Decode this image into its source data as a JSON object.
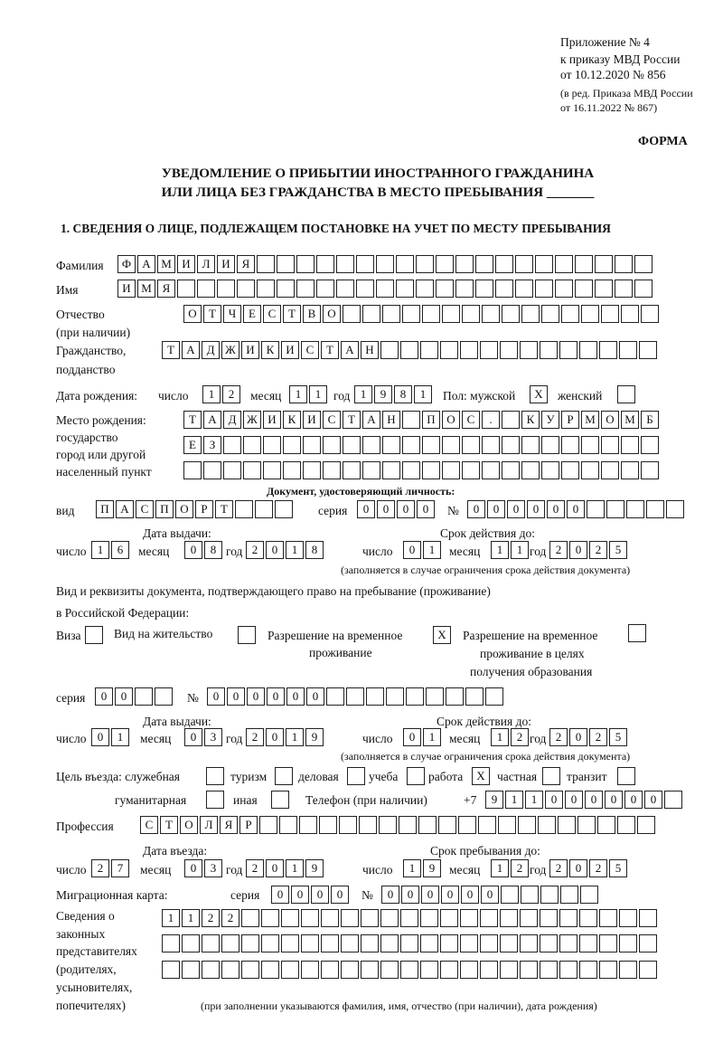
{
  "header": {
    "annex": "Приложение № 4",
    "order1": "к приказу МВД России",
    "order2": "от 10.12.2020 № 856",
    "edit1": "(в ред. Приказа МВД России",
    "edit2": "от 16.11.2022 № 867)",
    "form": "ФОРМА",
    "title1": "УВЕДОМЛЕНИЕ О ПРИБЫТИИ ИНОСТРАННОГО ГРАЖДАНИНА",
    "title2": "ИЛИ ЛИЦА БЕЗ ГРАЖДАНСТВА В МЕСТО ПРЕБЫВАНИЯ _______"
  },
  "section1": "1. СВЕДЕНИЯ О ЛИЦЕ, ПОДЛЕЖАЩЕМ ПОСТАНОВКЕ НА УЧЕТ ПО МЕСТУ ПРЕБЫВАНИЯ",
  "labels": {
    "surname": "Фамилия",
    "name": "Имя",
    "patronymic": "Отчество",
    "patronymic2": "(при наличии)",
    "citizenship": "Гражданство,",
    "citizenship2": "подданство",
    "birthdate": "Дата рождения:",
    "day": "число",
    "month": "месяц",
    "year": "год",
    "sex": "Пол: мужской",
    "female": "женский",
    "birthplace1": "Место рождения:",
    "birthplace2": "государство",
    "birthplace3": "город или другой",
    "birthplace4": "населенный пункт",
    "iddoc": "Документ, удостоверяющий личность:",
    "kind": "вид",
    "series": "серия",
    "number": "№",
    "issued": "Дата выдачи:",
    "valid": "Срок действия до:",
    "validnote": "(заполняется в случае ограничения срока действия документа)",
    "rightdoc1": "Вид и реквизиты документа, подтверждающего право на пребывание (проживание)",
    "rightdoc2": "в Российской Федерации:",
    "visa": "Виза",
    "residence": "Вид на жительство",
    "trp1": "Разрешение на временное",
    "trp2": "проживание",
    "trpe1": "Разрешение на временное",
    "trpe2": "проживание в целях",
    "trpe3": "получения образования",
    "purpose": "Цель въезда: служебная",
    "tourism": "туризм",
    "business": "деловая",
    "study": "учеба",
    "work": "работа",
    "private": "частная",
    "transit": "транзит",
    "humanitarian": "гуманитарная",
    "other": "иная",
    "phone": "Телефон (при наличии)",
    "phoneprefix": "+7",
    "profession": "Профессия",
    "entry": "Дата въезда:",
    "stayuntil": "Срок пребывания до:",
    "migcard": "Миграционная карта:",
    "legal1": "Сведения о",
    "legal2": "законных",
    "legal3": "представителях",
    "legal4": "(родителях,",
    "legal5": "усыновителях,",
    "legal6": "попечителях)",
    "legalnote": "(при заполнении указываются фамилия, имя, отчество (при наличии), дата рождения)"
  },
  "values": {
    "surname": "ФАМИЛИЯ",
    "name": "ИМЯ",
    "patronymic": "ОТЧЕСТВО",
    "citizenship": "ТАДЖИКИСТАН",
    "birth_day": "12",
    "birth_month": "11",
    "birth_year": "1981",
    "sex_male": "X",
    "sex_female": "",
    "birthplace1": "ТАДЖИКИСТАН ПОС. КУРМОМБ",
    "birthplace2": "ЕЗ",
    "birthplace3": "",
    "doc_kind": "ПАСПОРТ",
    "doc_series": "0000",
    "doc_number": "000000",
    "doc_issue_day": "16",
    "doc_issue_month": "08",
    "doc_issue_year": "2018",
    "doc_valid_day": "01",
    "doc_valid_month": "11",
    "doc_valid_year": "2025",
    "visa": "",
    "residence": "",
    "trp": "X",
    "trpe": "",
    "rd_series": "00",
    "rd_number": "000000",
    "rd_issue_day": "01",
    "rd_issue_month": "03",
    "rd_issue_year": "2019",
    "rd_valid_day": "01",
    "rd_valid_month": "12",
    "rd_valid_year": "2025",
    "p_service": "",
    "p_tourism": "",
    "p_business": "",
    "p_study": "",
    "p_work": "X",
    "p_private": "",
    "p_transit": "",
    "p_humanitarian": "",
    "p_other": "",
    "phone": "911000000",
    "profession": "СТОЛЯР",
    "entry_day": "27",
    "entry_month": "03",
    "entry_year": "2019",
    "stay_day": "19",
    "stay_month": "12",
    "stay_year": "2025",
    "mc_series": "0000",
    "mc_number": "000000",
    "legal1": "1122",
    "legal2": "",
    "legal3": ""
  }
}
